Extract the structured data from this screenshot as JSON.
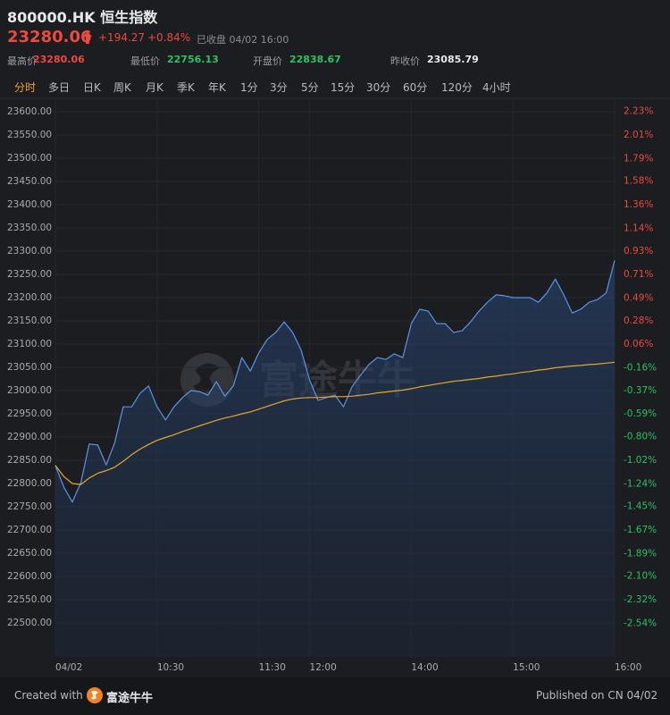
{
  "header": {
    "title": "800000.HK 恒生指数",
    "price": "23280.06",
    "change": "+194.27",
    "change_pct": "+0.84%",
    "status": "已收盘 04/02 16:00",
    "stats": [
      {
        "label": "最高价",
        "value": "23280.06"
      },
      {
        "label": "最低价",
        "value": "22756.13"
      },
      {
        "label": "开盘价",
        "value": "22838.67"
      },
      {
        "label": "昨收价",
        "value": "23085.79"
      }
    ]
  },
  "tabs": [
    "分时",
    "多日",
    "日K",
    "周K",
    "月K",
    "季K",
    "年K",
    "1分",
    "3分",
    "5分",
    "15分",
    "30分",
    "60分",
    "120分",
    "4小时"
  ],
  "watermark": "富途牛牛",
  "footer": {
    "created": "Created with",
    "brand": "富途牛牛",
    "published": "Published on CN 04/02"
  },
  "chart_data": {
    "type": "line",
    "x": [
      "09:30",
      "09:35",
      "09:40",
      "09:45",
      "09:50",
      "09:55",
      "10:00",
      "10:05",
      "10:10",
      "10:15",
      "10:20",
      "10:25",
      "10:30",
      "10:35",
      "10:40",
      "10:45",
      "10:50",
      "10:55",
      "11:00",
      "11:05",
      "11:10",
      "11:15",
      "11:20",
      "11:25",
      "11:30",
      "11:35",
      "11:40",
      "11:45",
      "11:50",
      "11:55",
      "12:00",
      "13:05",
      "13:10",
      "13:15",
      "13:20",
      "13:25",
      "13:30",
      "13:35",
      "13:40",
      "13:45",
      "13:50",
      "13:55",
      "14:00",
      "14:05",
      "14:10",
      "14:15",
      "14:20",
      "14:25",
      "14:30",
      "14:35",
      "14:40",
      "14:45",
      "14:50",
      "14:55",
      "15:00",
      "15:05",
      "15:10",
      "15:15",
      "15:20",
      "15:25",
      "15:30",
      "15:35",
      "15:40",
      "15:45",
      "15:50",
      "15:55",
      "16:00"
    ],
    "series": [
      {
        "color": "#5b93e6",
        "values": [
          22838.67,
          22792,
          22760,
          22802,
          22885,
          22883,
          22840,
          22888,
          22965,
          22965,
          22994,
          23010,
          22965,
          22937,
          22965,
          22985,
          23000,
          22998,
          22990,
          23019,
          22988,
          23010,
          23071,
          23042,
          23081,
          23110,
          23125,
          23148,
          23125,
          23087,
          23023,
          22979,
          22985,
          22990,
          22965,
          23008,
          23033,
          23056,
          23071,
          23067,
          23079,
          23071,
          23144,
          23175,
          23171,
          23144,
          23144,
          23125,
          23129,
          23148,
          23171,
          23190,
          23206,
          23204,
          23200,
          23200,
          23200,
          23190,
          23210,
          23240,
          23206,
          23167,
          23175,
          23190,
          23196,
          23210,
          23280.06
        ]
      },
      {
        "color": "#e6a82a",
        "values": [
          22839,
          22815,
          22800,
          22798,
          22812,
          22822,
          22828,
          22835,
          22848,
          22862,
          22874,
          22884,
          22893,
          22899,
          22905,
          22912,
          22918,
          22924,
          22930,
          22936,
          22941,
          22945,
          22950,
          22954,
          22960,
          22966,
          22972,
          22978,
          22982,
          22984,
          22985,
          22985,
          22986,
          22987,
          22987,
          22988,
          22990,
          22992,
          22995,
          22997,
          22999,
          23001,
          23004,
          23008,
          23011,
          23014,
          23017,
          23020,
          23022,
          23024,
          23026,
          23029,
          23031,
          23034,
          23036,
          23039,
          23041,
          23044,
          23046,
          23049,
          23051,
          23053,
          23054,
          23056,
          23057,
          23059,
          23061
        ]
      }
    ],
    "xlim": [
      "09:30",
      "16:00"
    ],
    "xticks": [
      {
        "value": "09:30",
        "label": "04/02"
      },
      {
        "value": "10:30",
        "label": "10:30"
      },
      {
        "value": "11:30",
        "label": "11:30"
      },
      {
        "value": "12:00",
        "label": "12:00"
      },
      {
        "value": "14:00",
        "label": "14:00"
      },
      {
        "value": "15:00",
        "label": "15:00"
      },
      {
        "value": "16:00",
        "label": "16:00"
      }
    ],
    "ylim": [
      22427,
      23625
    ],
    "yticks": [
      {
        "value": 23600,
        "label": "23600.00"
      },
      {
        "value": 23550,
        "label": "23550.00"
      },
      {
        "value": 23500,
        "label": "23500.00"
      },
      {
        "value": 23450,
        "label": "23450.00"
      },
      {
        "value": 23400,
        "label": "23400.00"
      },
      {
        "value": 23350,
        "label": "23350.00"
      },
      {
        "value": 23300,
        "label": "23300.00"
      },
      {
        "value": 23250,
        "label": "23250.00"
      },
      {
        "value": 23200,
        "label": "23200.00"
      },
      {
        "value": 23150,
        "label": "23150.00"
      },
      {
        "value": 23100,
        "label": "23100.00"
      },
      {
        "value": 23050,
        "label": "23050.00"
      },
      {
        "value": 23000,
        "label": "23000.00"
      },
      {
        "value": 22950,
        "label": "22950.00"
      },
      {
        "value": 22900,
        "label": "22900.00"
      },
      {
        "value": 22850,
        "label": "22850.00"
      },
      {
        "value": 22800,
        "label": "22800.00"
      },
      {
        "value": 22750,
        "label": "22750.00"
      },
      {
        "value": 22700,
        "label": "22700.00"
      },
      {
        "value": 22650,
        "label": "22650.00"
      },
      {
        "value": 22600,
        "label": "22600.00"
      },
      {
        "value": 22550,
        "label": "22550.00"
      },
      {
        "value": 22500,
        "label": "22500.00"
      }
    ],
    "y2lim": [
      -2.854,
      2.336
    ],
    "y2ticks": [
      {
        "value": 2.23,
        "label": "2.23%"
      },
      {
        "value": 2.01,
        "label": "2.01%"
      },
      {
        "value": 1.79,
        "label": "1.79%"
      },
      {
        "value": 1.58,
        "label": "1.58%"
      },
      {
        "value": 1.36,
        "label": "1.36%"
      },
      {
        "value": 1.14,
        "label": "1.14%"
      },
      {
        "value": 0.93,
        "label": "0.93%"
      },
      {
        "value": 0.71,
        "label": "0.71%"
      },
      {
        "value": 0.49,
        "label": "0.49%"
      },
      {
        "value": 0.28,
        "label": "0.28%"
      },
      {
        "value": 0.06,
        "label": "0.06%"
      },
      {
        "value": -0.16,
        "label": "-0.16%"
      },
      {
        "value": -0.37,
        "label": "-0.37%"
      },
      {
        "value": -0.59,
        "label": "-0.59%"
      },
      {
        "value": -0.8,
        "label": "-0.80%"
      },
      {
        "value": -1.02,
        "label": "-1.02%"
      },
      {
        "value": -1.24,
        "label": "-1.24%"
      },
      {
        "value": -1.45,
        "label": "-1.45%"
      },
      {
        "value": -1.67,
        "label": "-1.67%"
      },
      {
        "value": -1.89,
        "label": "-1.89%"
      },
      {
        "value": -2.1,
        "label": "-2.10%"
      },
      {
        "value": -2.32,
        "label": "-2.32%"
      },
      {
        "value": -2.54,
        "label": "-2.54%"
      }
    ],
    "grid": true,
    "up_color": "#ea4a3f",
    "down_color": "#2cc163"
  }
}
